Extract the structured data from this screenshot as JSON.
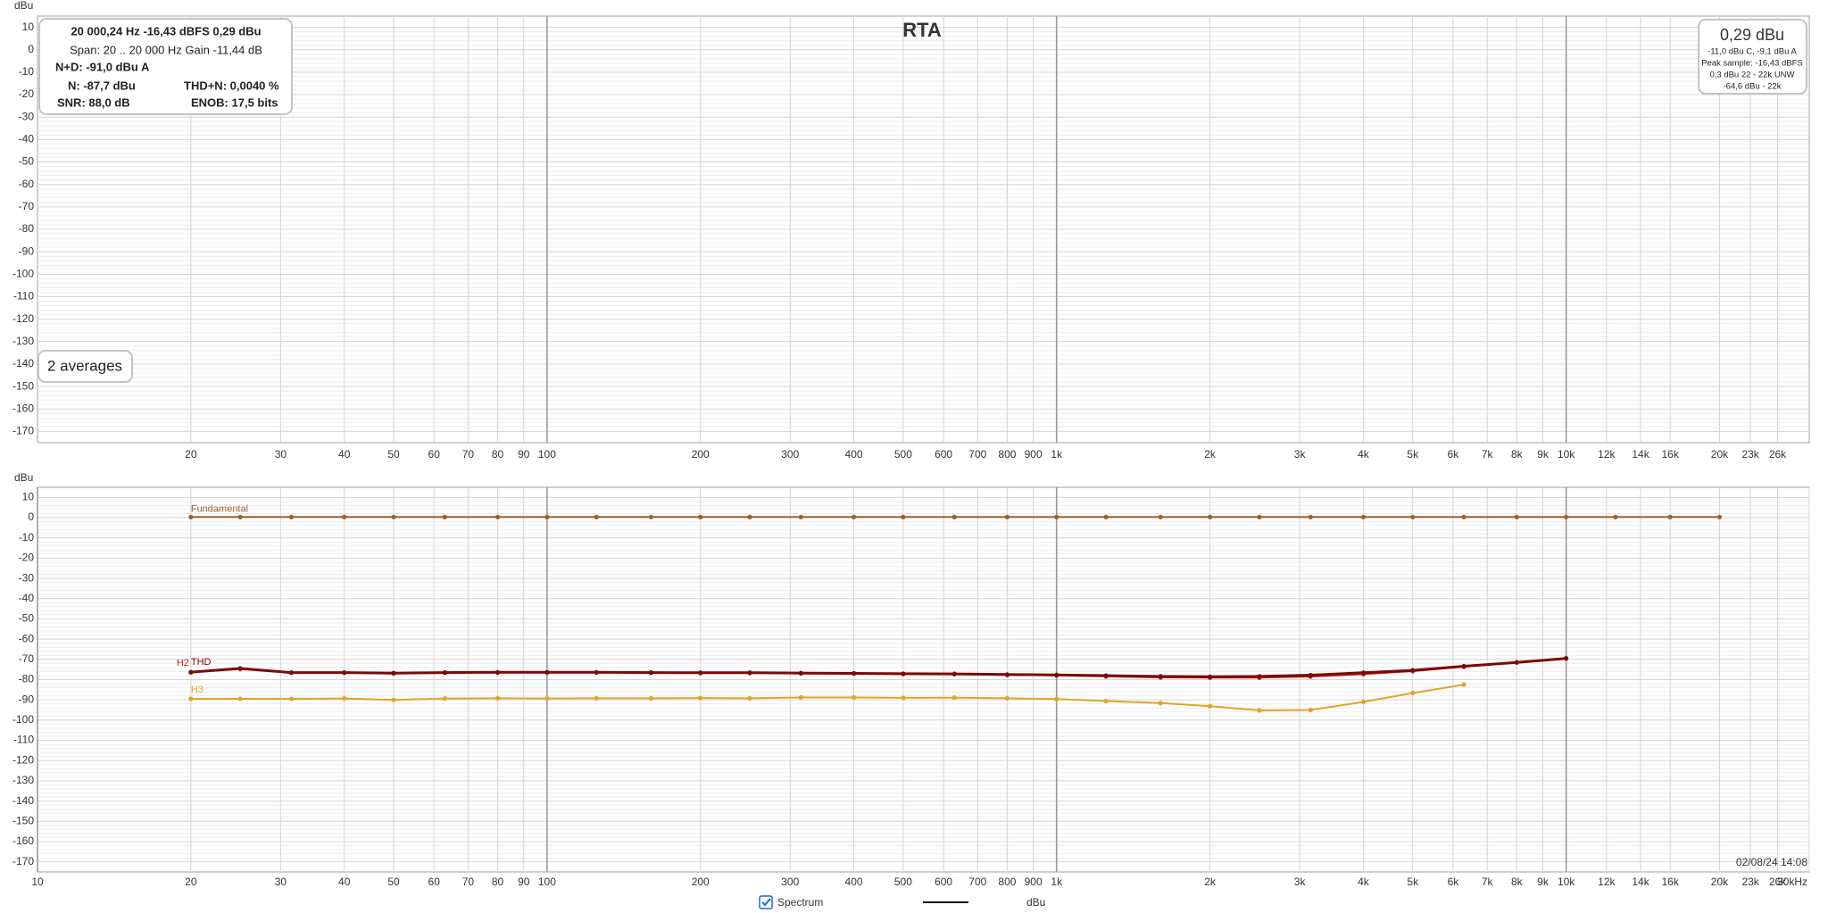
{
  "chart_data": [
    {
      "type": "line",
      "title": "RTA",
      "y_label": "dBu",
      "log_x": true,
      "grid": true,
      "xlim": [
        10,
        30000
      ],
      "ylim": [
        -175,
        15
      ],
      "xticks": [
        20,
        30,
        40,
        50,
        60,
        70,
        80,
        90,
        100,
        200,
        300,
        400,
        500,
        600,
        700,
        800,
        900,
        {
          "value": 1000,
          "label": "1k"
        },
        {
          "value": 2000,
          "label": "2k"
        },
        {
          "value": 3000,
          "label": "3k"
        },
        {
          "value": 4000,
          "label": "4k"
        },
        {
          "value": 5000,
          "label": "5k"
        },
        {
          "value": 6000,
          "label": "6k"
        },
        {
          "value": 7000,
          "label": "7k"
        },
        {
          "value": 8000,
          "label": "8k"
        },
        {
          "value": 9000,
          "label": "9k"
        },
        {
          "value": 10000,
          "label": "10k"
        },
        {
          "value": 12000,
          "label": "12k"
        },
        {
          "value": 14000,
          "label": "14k"
        },
        {
          "value": 16000,
          "label": "16k"
        },
        {
          "value": 20000,
          "label": "20k"
        },
        {
          "value": 23000,
          "label": "23k"
        },
        {
          "value": 26000,
          "label": "26k"
        }
      ],
      "yticks": [
        10,
        0,
        -10,
        -20,
        -30,
        -40,
        -50,
        -60,
        -70,
        -80,
        -90,
        -100,
        -110,
        -120,
        -130,
        -140,
        -150,
        -160,
        -170
      ],
      "series": []
    },
    {
      "type": "line",
      "y_label": "dBu",
      "log_x": true,
      "grid": true,
      "annotation": "02/08/24 14:08",
      "xlim": [
        10,
        30000
      ],
      "ylim": [
        -175,
        15
      ],
      "xticks": [
        10,
        20,
        30,
        40,
        50,
        60,
        70,
        80,
        90,
        100,
        200,
        300,
        400,
        500,
        600,
        700,
        800,
        900,
        {
          "value": 1000,
          "label": "1k"
        },
        {
          "value": 2000,
          "label": "2k"
        },
        {
          "value": 3000,
          "label": "3k"
        },
        {
          "value": 4000,
          "label": "4k"
        },
        {
          "value": 5000,
          "label": "5k"
        },
        {
          "value": 6000,
          "label": "6k"
        },
        {
          "value": 7000,
          "label": "7k"
        },
        {
          "value": 8000,
          "label": "8k"
        },
        {
          "value": 9000,
          "label": "9k"
        },
        {
          "value": 10000,
          "label": "10k"
        },
        {
          "value": 12000,
          "label": "12k"
        },
        {
          "value": 14000,
          "label": "14k"
        },
        {
          "value": 16000,
          "label": "16k"
        },
        {
          "value": 20000,
          "label": "20k"
        },
        {
          "value": 23000,
          "label": "23k"
        },
        {
          "value": 26000,
          "label": "26k"
        },
        {
          "value": 30000,
          "label": "30kHz"
        }
      ],
      "yticks": [
        10,
        0,
        -10,
        -20,
        -30,
        -40,
        -50,
        -60,
        -70,
        -80,
        -90,
        -100,
        -110,
        -120,
        -130,
        -140,
        -150,
        -160,
        -170
      ],
      "x": [
        20,
        25,
        31.5,
        40,
        50,
        63,
        80,
        100,
        125,
        160,
        200,
        250,
        315,
        400,
        500,
        630,
        800,
        1000,
        1250,
        1600,
        2000,
        2500,
        3150,
        4000,
        5000,
        6300,
        8000,
        10000,
        12500,
        16000,
        20000
      ],
      "series": [
        {
          "name": "Fundamental",
          "color": "#a0602c",
          "values": [
            0.3,
            0.3,
            0.3,
            0.3,
            0.3,
            0.3,
            0.3,
            0.3,
            0.3,
            0.3,
            0.3,
            0.3,
            0.3,
            0.3,
            0.3,
            0.3,
            0.3,
            0.3,
            0.3,
            0.3,
            0.3,
            0.3,
            0.3,
            0.3,
            0.3,
            0.3,
            0.3,
            0.3,
            0.3,
            0.3,
            0.3
          ]
        },
        {
          "name": "H2",
          "color": "#c0282a",
          "values": [
            -76.4,
            -74.7,
            -76.6,
            -76.6,
            -76.9,
            -76.6,
            -76.5,
            -76.5,
            -76.5,
            -76.6,
            -76.7,
            -76.7,
            -76.9,
            -77.0,
            -77.2,
            -77.3,
            -77.7,
            -77.9,
            -78.4,
            -78.9,
            -79.0,
            -79.0,
            -78.5,
            -77.3,
            -75.8,
            -73.6,
            -71.5,
            -69.5,
            null,
            null,
            null
          ]
        },
        {
          "name": "THD",
          "color": "#7a0a0a",
          "values": [
            -76.3,
            -74.5,
            -76.5,
            -76.5,
            -76.8,
            -76.5,
            -76.4,
            -76.4,
            -76.4,
            -76.5,
            -76.6,
            -76.6,
            -76.8,
            -76.9,
            -77.1,
            -77.2,
            -77.5,
            -77.7,
            -78.0,
            -78.4,
            -78.6,
            -78.4,
            -77.8,
            -76.6,
            -75.4,
            -73.4,
            -71.5,
            -69.5,
            null,
            null,
            null
          ]
        },
        {
          "name": "H3",
          "color": "#e3a32a",
          "values": [
            -89.5,
            -89.5,
            -89.5,
            -89.3,
            -90.0,
            -89.3,
            -89.2,
            -89.3,
            -89.2,
            -89.2,
            -89.1,
            -89.2,
            -88.8,
            -88.8,
            -89.0,
            -88.9,
            -89.2,
            -89.6,
            -90.6,
            -91.6,
            -93.1,
            -95.2,
            -95.0,
            -91.0,
            -86.6,
            -82.5,
            null,
            null,
            null,
            null,
            null
          ]
        }
      ]
    }
  ],
  "info_box": {
    "rows": [
      [
        "20 000,24 Hz  -16,43 dBFS  0,29 dBu"
      ],
      [
        "Span: 20 .. 20 000 Hz   Gain -11,44 dB"
      ],
      [
        "N+D: -91,0 dBu A"
      ],
      [
        "N: -87,7 dBu",
        "THD+N: 0,0040 %"
      ],
      [
        "SNR: 88,0 dB",
        "ENOB: 17,5 bits"
      ]
    ]
  },
  "level_box": {
    "level": "0,29 dBu",
    "lines": [
      "-11,0 dBu C, -9,1 dBu A",
      "Peak sample: -16,43 dBFS",
      "0,3 dBu 22 - 22k UNW",
      "-64,6 dBu - 22k"
    ]
  },
  "averages": "2 averages",
  "legend_bar": {
    "label": "Spectrum",
    "unit": "dBu"
  }
}
